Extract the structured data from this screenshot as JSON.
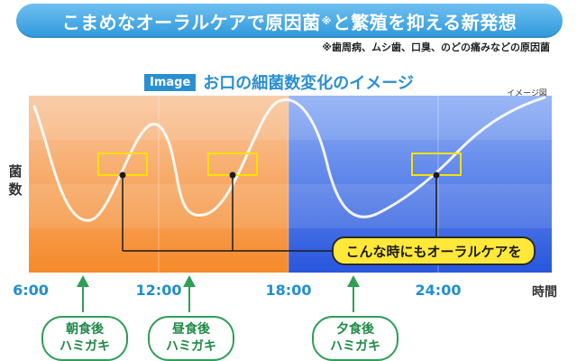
{
  "banner": {
    "text_a": "こまめなオーラルケアで原因菌",
    "sup": "※",
    "text_b": "と繁殖を抑える新発想"
  },
  "note": "※歯周病、ムシ歯、口臭、のどの痛みなどの原因菌",
  "chart_title": {
    "badge": "Image",
    "text": "お口の細菌数変化のイメージ"
  },
  "image_note": "イメージ図",
  "y_axis_label": "菌数",
  "x_axis": {
    "ticks": [
      "6:00",
      "12:00",
      "18:00",
      "24:00"
    ],
    "unit": "時間"
  },
  "callout": "こんな時にもオーラルケアを",
  "brushing": [
    {
      "line1": "朝食後",
      "line2": "ハミガキ"
    },
    {
      "line1": "昼食後",
      "line2": "ハミガキ"
    },
    {
      "line1": "夕食後",
      "line2": "ハミガキ"
    }
  ],
  "colors": {
    "banner": "#3aa3e0",
    "day_band": "#f7a45a",
    "night_band": "#3d78e6",
    "callout": "#ffe83a",
    "arrow": "#2f9e57",
    "curve": "#ffffff",
    "highlight_box": "#ffe000"
  }
}
